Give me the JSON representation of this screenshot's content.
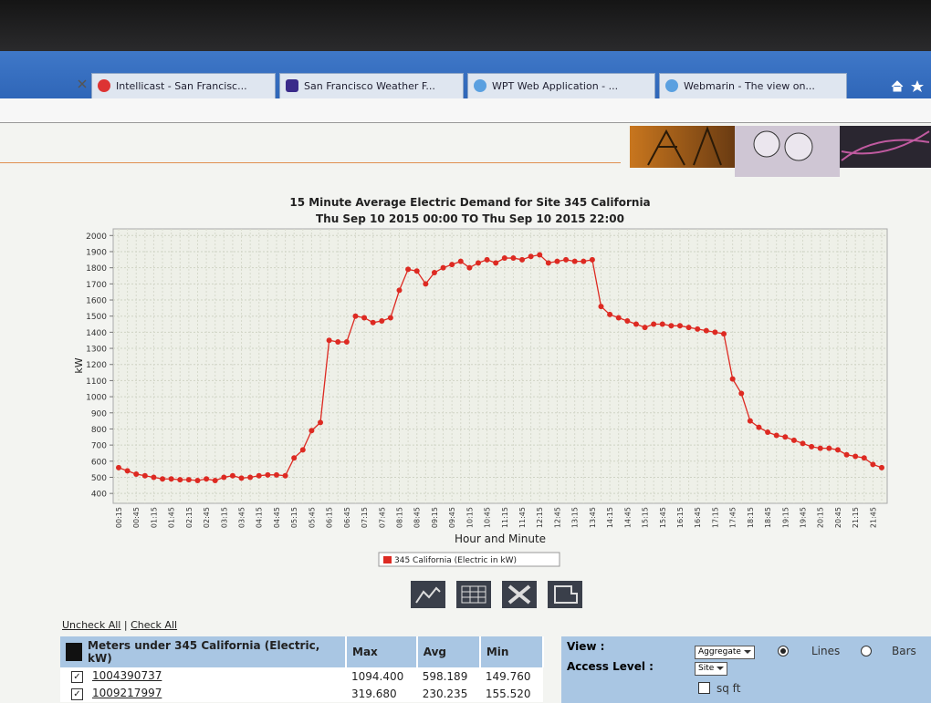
{
  "browser": {
    "tabs": [
      "Intellicast - San Francisc...",
      "San Francisco Weather F...",
      "WPT Web Application - ...",
      "Webmarin - The view on..."
    ]
  },
  "chart_data": {
    "type": "line",
    "title": "15 Minute Average Electric Demand  for Site 345 California",
    "subtitle": "Thu Sep 10 2015 00:00  TO  Thu Sep 10 2015 22:00",
    "x_label": "Hour and Minute",
    "y_label": "kW",
    "categories": [
      "00:15",
      null,
      "00:45",
      null,
      "01:15",
      null,
      "01:45",
      null,
      "02:15",
      null,
      "02:45",
      null,
      "03:15",
      null,
      "03:45",
      null,
      "04:15",
      null,
      "04:45",
      null,
      "05:15",
      null,
      "05:45",
      null,
      "06:15",
      null,
      "06:45",
      null,
      "07:15",
      null,
      "07:45",
      null,
      "08:15",
      null,
      "08:45",
      null,
      "09:15",
      null,
      "09:45",
      null,
      "10:15",
      null,
      "10:45",
      null,
      "11:15",
      null,
      "11:45",
      null,
      "12:15",
      null,
      "12:45",
      null,
      "13:15",
      null,
      "13:45",
      null,
      "14:15",
      null,
      "14:45",
      null,
      "15:15",
      null,
      "15:45",
      null,
      "16:15",
      null,
      "16:45",
      null,
      "17:15",
      null,
      "17:45",
      null,
      "18:15",
      null,
      "18:45",
      null,
      "19:15",
      null,
      "19:45",
      null,
      "20:15",
      null,
      "20:45",
      null,
      "21:15",
      null,
      "21:45",
      null
    ],
    "series": [
      {
        "name": "345 California (Electric in kW)",
        "color": "#dd2a22",
        "values": [
          560,
          540,
          520,
          510,
          500,
          490,
          490,
          485,
          485,
          480,
          490,
          480,
          500,
          510,
          495,
          500,
          510,
          515,
          515,
          510,
          620,
          670,
          790,
          840,
          1350,
          1340,
          1340,
          1500,
          1490,
          1460,
          1470,
          1490,
          1660,
          1790,
          1780,
          1700,
          1770,
          1800,
          1820,
          1840,
          1800,
          1830,
          1850,
          1830,
          1860,
          1860,
          1850,
          1870,
          1880,
          1830,
          1840,
          1850,
          1840,
          1840,
          1850,
          1560,
          1510,
          1490,
          1470,
          1450,
          1430,
          1450,
          1450,
          1440,
          1440,
          1430,
          1420,
          1410,
          1400,
          1390,
          1110,
          1020,
          850,
          810,
          780,
          760,
          750,
          730,
          710,
          690,
          680,
          680,
          670,
          640,
          630,
          620,
          580,
          560
        ]
      }
    ],
    "ylim": [
      350,
      2030
    ],
    "yticks": [
      400,
      500,
      600,
      700,
      800,
      900,
      1000,
      1100,
      1200,
      1300,
      1400,
      1500,
      1600,
      1700,
      1800,
      1900,
      2000
    ],
    "grid": true,
    "legend": "bottom"
  },
  "links": {
    "uncheck_all": "Uncheck All",
    "separator": "|",
    "check_all": "Check All"
  },
  "meters_table": {
    "header": [
      "Meters under 345 California (Electric, kW)",
      "Max",
      "Avg",
      "Min"
    ],
    "rows": [
      [
        "1004390737",
        "1094.400",
        "598.189",
        "149.760"
      ],
      [
        "1009217997",
        "319.680",
        "230.235",
        "155.520"
      ]
    ]
  },
  "options": {
    "view_label": "View :",
    "access_level_label": "Access Level :",
    "view_select": "Aggregate",
    "lines": "Lines",
    "bars": "Bars",
    "access_select": "Site",
    "sq_ft": "sq ft"
  }
}
